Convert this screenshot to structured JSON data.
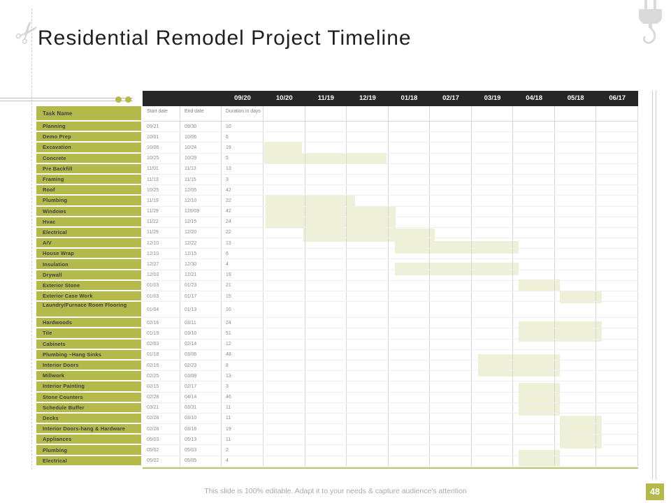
{
  "slide": {
    "title": "Residential Remodel Project Timeline",
    "footer_note": "This slide is 100% editable. Adapt it to your needs & capture audience's attention",
    "page_number": "48",
    "colors": {
      "accent_olive": "#b3ba4b",
      "header_dark": "#262626",
      "bar_fill": "#eef0d8"
    },
    "icons": {
      "top_left": "scissors-icon",
      "top_right": "plug-hook-icon"
    }
  },
  "table_headers": {
    "task": "Task Name",
    "start": "Start date",
    "end": "End date",
    "duration": "Duration in days"
  },
  "chart_data": {
    "type": "table",
    "subtype": "gantt-timeline",
    "title": "Residential Remodel Project Timeline",
    "month_columns": [
      "09/20",
      "10/20",
      "11/19",
      "12/19",
      "01/18",
      "02/17",
      "03/19",
      "04/18",
      "05/18",
      "06/17"
    ],
    "columns": [
      "Task Name",
      "Start date",
      "End date",
      "Duration in days"
    ],
    "tasks": [
      {
        "name": "Planning",
        "start": "09/21",
        "end": "09/30",
        "duration": "10"
      },
      {
        "name": "Demo Prep",
        "start": "10/01",
        "end": "10/06",
        "duration": "6"
      },
      {
        "name": "Excavation",
        "start": "10/06",
        "end": "10/24",
        "duration": "19"
      },
      {
        "name": "Concrete",
        "start": "10/25",
        "end": "10/29",
        "duration": "5"
      },
      {
        "name": "Pre Backfill",
        "start": "11/01",
        "end": "11/13",
        "duration": "13"
      },
      {
        "name": "Framing",
        "start": "11/13",
        "end": "11/15",
        "duration": "3"
      },
      {
        "name": "Roof",
        "start": "10/25",
        "end": "12/05",
        "duration": "42"
      },
      {
        "name": "Plumbing",
        "start": "11/19",
        "end": "12/10",
        "duration": "22"
      },
      {
        "name": "Windows",
        "start": "11/29",
        "end": "120/09",
        "duration": "42"
      },
      {
        "name": "Hvac",
        "start": "11/22",
        "end": "12/15",
        "duration": "24"
      },
      {
        "name": "Electrical",
        "start": "11/29",
        "end": "12/20",
        "duration": "22"
      },
      {
        "name": "A/V",
        "start": "12/10",
        "end": "12/22",
        "duration": "13"
      },
      {
        "name": "House Wrap",
        "start": "12/10",
        "end": "12/15",
        "duration": "6"
      },
      {
        "name": "Insulation",
        "start": "12/27",
        "end": "12/30",
        "duration": "4"
      },
      {
        "name": "Drywall",
        "start": "12/03",
        "end": "12/21",
        "duration": "19"
      },
      {
        "name": "Exterior Stone",
        "start": "01/03",
        "end": "01/23",
        "duration": "21"
      },
      {
        "name": "Exterior Case Work",
        "start": "01/03",
        "end": "01/17",
        "duration": "15"
      },
      {
        "name": "Laundry/Furnace Room Flooring",
        "start": "01/04",
        "end": "01/13",
        "duration": "10",
        "wrap": true
      },
      {
        "name": "Hardwoods",
        "start": "02/16",
        "end": "03/11",
        "duration": "24"
      },
      {
        "name": "Tile",
        "start": "01/19",
        "end": "03/10",
        "duration": "51"
      },
      {
        "name": "Cabinets",
        "start": "02/03",
        "end": "02/14",
        "duration": "12"
      },
      {
        "name": "Plumbing –Hang Sinks",
        "start": "01/18",
        "end": "03/06",
        "duration": "48"
      },
      {
        "name": "Interior Doors",
        "start": "02/16",
        "end": "02/23",
        "duration": "8"
      },
      {
        "name": "Millwork",
        "start": "02/25",
        "end": "03/09",
        "duration": "13"
      },
      {
        "name": "Interior Painting",
        "start": "02/15",
        "end": "02/17",
        "duration": "3"
      },
      {
        "name": "Stone Counters",
        "start": "02/28",
        "end": "04/14",
        "duration": "46"
      },
      {
        "name": "Schedule Buffer",
        "start": "03/21",
        "end": "03/31",
        "duration": "11"
      },
      {
        "name": "Decks",
        "start": "02/28",
        "end": "03/10",
        "duration": "11"
      },
      {
        "name": "Interior Doors-hang & Hardware",
        "start": "02/28",
        "end": "03/18",
        "duration": "19"
      },
      {
        "name": "Appliances",
        "start": "05/03",
        "end": "05/13",
        "duration": "11"
      },
      {
        "name": "Plumbing",
        "start": "05/02",
        "end": "05/03",
        "duration": "2"
      },
      {
        "name": "Electrical",
        "start": "05/02",
        "end": "05/05",
        "duration": "4"
      }
    ],
    "gantt_bars": [
      {
        "r0": 2.0,
        "r1": 4.0,
        "c0": 0.02,
        "c1": 0.92
      },
      {
        "r0": 3.0,
        "r1": 4.0,
        "c0": 0.92,
        "c1": 2.95
      },
      {
        "r0": 7.0,
        "r1": 10.05,
        "c0": 0.05,
        "c1": 0.95
      },
      {
        "r0": 7.0,
        "r1": 11.3,
        "c0": 0.95,
        "c1": 2.2
      },
      {
        "r0": 8.0,
        "r1": 11.3,
        "c0": 2.2,
        "c1": 3.18
      },
      {
        "r0": 10.05,
        "r1": 12.45,
        "c0": 3.15,
        "c1": 4.12
      },
      {
        "r0": 11.25,
        "r1": 12.45,
        "c0": 4.12,
        "c1": 6.13
      },
      {
        "r0": 13.3,
        "r1": 14.45,
        "c0": 3.15,
        "c1": 6.13
      },
      {
        "r0": 14.85,
        "r1": 15.95,
        "c0": 6.13,
        "c1": 7.12
      },
      {
        "r0": 16.0,
        "r1": 17.05,
        "c0": 7.12,
        "c1": 8.13
      },
      {
        "r0": 18.3,
        "r1": 20.2,
        "c0": 6.13,
        "c1": 8.13
      },
      {
        "r0": 21.4,
        "r1": 23.5,
        "c0": 5.15,
        "c1": 7.12
      },
      {
        "r0": 24.1,
        "r1": 27.2,
        "c0": 6.13,
        "c1": 7.12
      },
      {
        "r0": 27.2,
        "r1": 30.3,
        "c0": 7.12,
        "c1": 8.13
      },
      {
        "r0": 30.4,
        "r1": 32.0,
        "c0": 6.13,
        "c1": 7.12
      }
    ]
  }
}
